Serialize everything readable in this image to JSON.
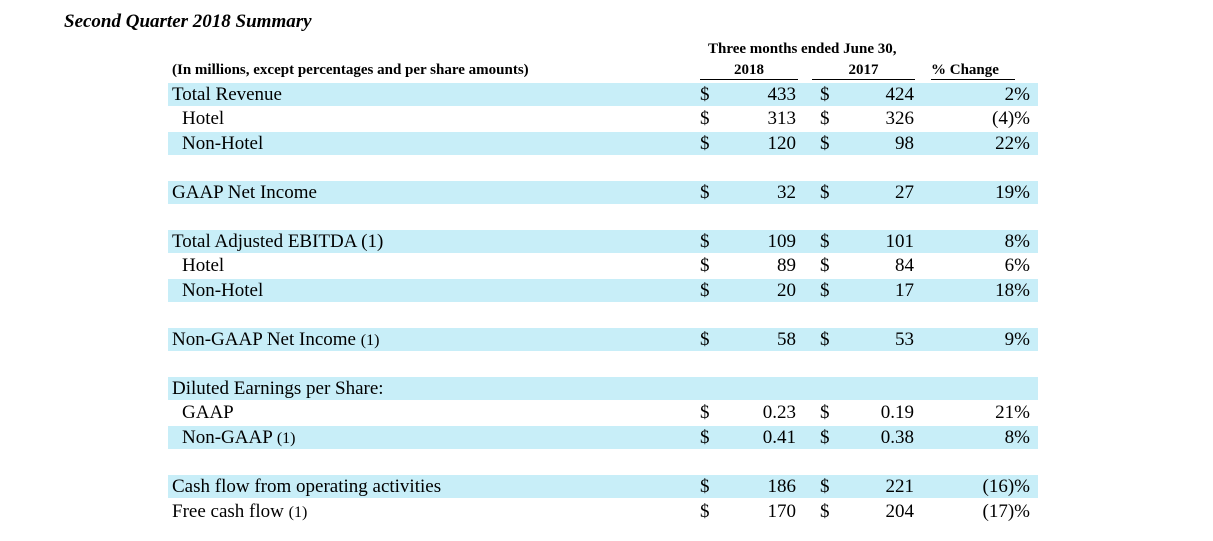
{
  "title": "Second Quarter 2018 Summary",
  "header": {
    "period_group": "Three months ended June 30,",
    "units_note": "(In millions, except percentages and per share amounts)",
    "col_2018": "2018",
    "col_2017": "2017",
    "col_change": "% Change"
  },
  "rows": [
    {
      "label": "Total Revenue",
      "note": "",
      "cur": "$",
      "v2018": "433",
      "cur2": "$",
      "v2017": "424",
      "pct": "2%"
    },
    {
      "label": "Hotel",
      "note": "",
      "cur": "$",
      "v2018": "313",
      "cur2": "$",
      "v2017": "326",
      "pct": "(4)%"
    },
    {
      "label": "Non-Hotel",
      "note": "",
      "cur": "$",
      "v2018": "120",
      "cur2": "$",
      "v2017": "98",
      "pct": "22%"
    },
    {
      "label": "GAAP Net Income",
      "note": "",
      "cur": "$",
      "v2018": "32",
      "cur2": "$",
      "v2017": "27",
      "pct": "19%"
    },
    {
      "label": "Total Adjusted EBITDA (1)",
      "note": "",
      "cur": "$",
      "v2018": "109",
      "cur2": "$",
      "v2017": "101",
      "pct": "8%"
    },
    {
      "label": "Hotel",
      "note": "",
      "cur": "$",
      "v2018": "89",
      "cur2": "$",
      "v2017": "84",
      "pct": "6%"
    },
    {
      "label": "Non-Hotel",
      "note": "",
      "cur": "$",
      "v2018": "20",
      "cur2": "$",
      "v2017": "17",
      "pct": "18%"
    },
    {
      "label": "Non-GAAP Net Income",
      "note": "(1)",
      "cur": "$",
      "v2018": "58",
      "cur2": "$",
      "v2017": "53",
      "pct": "9%"
    },
    {
      "label": "Diluted Earnings per Share:",
      "note": "",
      "cur": "",
      "v2018": "",
      "cur2": "",
      "v2017": "",
      "pct": ""
    },
    {
      "label": "GAAP",
      "note": "",
      "cur": "$",
      "v2018": "0.23",
      "cur2": "$",
      "v2017": "0.19",
      "pct": "21%"
    },
    {
      "label": "Non-GAAP",
      "note": "(1)",
      "cur": "$",
      "v2018": "0.41",
      "cur2": "$",
      "v2017": "0.38",
      "pct": "8%"
    },
    {
      "label": "Cash flow from operating activities",
      "note": "",
      "cur": "$",
      "v2018": "186",
      "cur2": "$",
      "v2017": "221",
      "pct": "(16)%"
    },
    {
      "label": "Free cash flow",
      "note": "(1)",
      "cur": "$",
      "v2018": "170",
      "cur2": "$",
      "v2017": "204",
      "pct": "(17)%"
    }
  ]
}
